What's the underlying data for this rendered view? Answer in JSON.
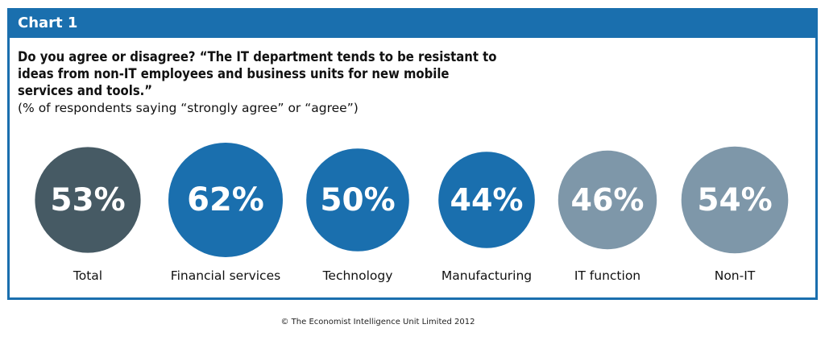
{
  "header": {
    "title": "Chart 1"
  },
  "question": "Do you agree or disagree? “The IT department tends to be resistant to ideas from non-IT employees and business units for new mobile services and tools.”",
  "subnote": "(% of respondents saying “strongly agree” or “agree”)",
  "footer": "© The Economist Intelligence Unit Limited 2012",
  "colors": {
    "frame": "#1a6fae",
    "total": "#465a64",
    "industry": "#1a6fae",
    "function": "#7e97a9"
  },
  "chart_data": {
    "type": "bubble",
    "title": "Do you agree or disagree? “The IT department tends to be resistant to ideas from non-IT employees and business units for new mobile services and tools.”",
    "subtitle": "(% of respondents saying “strongly agree” or “agree”)",
    "unit": "%",
    "categories": [
      "Total",
      "Financial services",
      "Technology",
      "Manufacturing",
      "IT function",
      "Non-IT"
    ],
    "values": [
      53,
      62,
      50,
      44,
      46,
      54
    ],
    "labels": [
      "53%",
      "62%",
      "50%",
      "44%",
      "46%",
      "54%"
    ],
    "colors": [
      "#465a64",
      "#1a6fae",
      "#1a6fae",
      "#1a6fae",
      "#7e97a9",
      "#7e97a9"
    ]
  }
}
